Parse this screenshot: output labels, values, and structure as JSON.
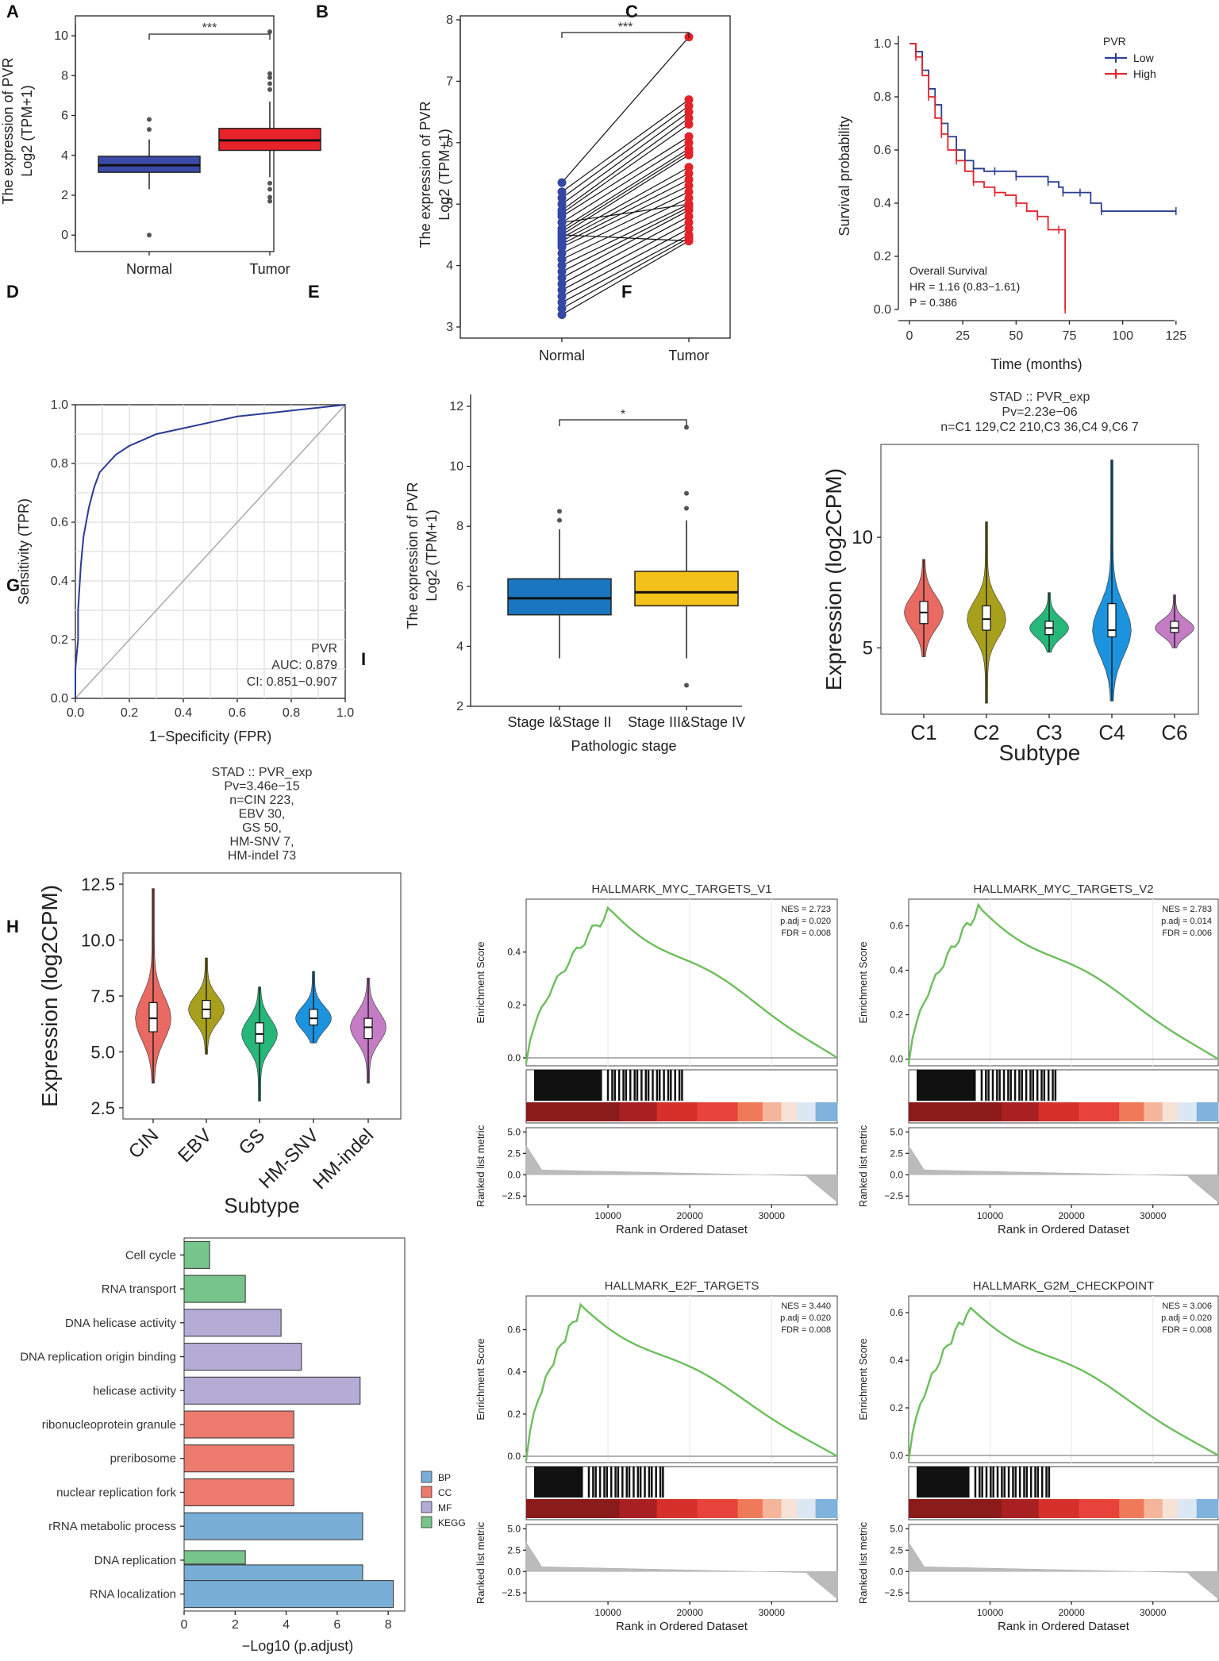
{
  "panels": {
    "a": "A",
    "b": "B",
    "c": "C",
    "d": "D",
    "e": "E",
    "f": "F",
    "g": "G",
    "h": "H",
    "i": "I"
  },
  "chart_data": [
    {
      "id": "A",
      "type": "box",
      "ylabel": "The expression of PVR",
      "ylabel2": "Log2 (TPM+1)",
      "ylim": [
        0,
        10.5
      ],
      "yticks": [
        0,
        2,
        4,
        6,
        8,
        10
      ],
      "categories": [
        "Normal",
        "Tumor"
      ],
      "boxes": [
        {
          "q1": 3.15,
          "median": 3.5,
          "q3": 3.95,
          "lo": 2.3,
          "hi": 4.8,
          "out": [
            5.3,
            5.8,
            0.0
          ],
          "color": "#3a4aa6"
        },
        {
          "q1": 4.25,
          "median": 4.75,
          "q3": 5.35,
          "lo": 2.9,
          "hi": 6.7,
          "out": [
            7.3,
            7.6,
            7.9,
            8.1,
            10.2,
            2.6,
            2.3,
            1.9,
            1.7
          ],
          "color": "#e8222b"
        }
      ],
      "significance": "***"
    },
    {
      "id": "B",
      "type": "paired",
      "ylabel": "The expression of PVR",
      "ylabel2": "Log2 (TPM+1)",
      "ylim": [
        3,
        8
      ],
      "yticks": [
        3,
        4,
        5,
        6,
        7,
        8
      ],
      "categories": [
        "Normal",
        "Tumor"
      ],
      "pairs": [
        [
          5.35,
          7.72
        ],
        [
          5.2,
          6.7
        ],
        [
          5.1,
          6.6
        ],
        [
          5.0,
          6.5
        ],
        [
          4.9,
          6.4
        ],
        [
          4.85,
          6.3
        ],
        [
          4.8,
          6.1
        ],
        [
          4.7,
          6.0
        ],
        [
          4.6,
          5.9
        ],
        [
          4.55,
          5.85
        ],
        [
          4.5,
          5.8
        ],
        [
          4.45,
          5.6
        ],
        [
          4.4,
          5.5
        ],
        [
          4.35,
          5.4
        ],
        [
          4.3,
          5.3
        ],
        [
          4.2,
          5.2
        ],
        [
          4.1,
          5.1
        ],
        [
          4.0,
          5.0
        ],
        [
          3.9,
          4.95
        ],
        [
          3.8,
          4.9
        ],
        [
          3.7,
          4.8
        ],
        [
          3.6,
          4.7
        ],
        [
          3.5,
          4.6
        ],
        [
          3.4,
          4.5
        ],
        [
          3.3,
          4.45
        ],
        [
          3.2,
          4.4
        ],
        [
          4.7,
          5.0
        ],
        [
          4.5,
          4.4
        ]
      ],
      "significance": "***"
    },
    {
      "id": "C",
      "type": "line",
      "xlabel": "Time (months)",
      "ylabel": "Survival probability",
      "xlim": [
        0,
        125
      ],
      "ylim": [
        0,
        1
      ],
      "xticks": [
        0,
        25,
        50,
        75,
        100,
        125
      ],
      "yticks": [
        "0.0",
        "0.2",
        "0.4",
        "0.6",
        "0.8",
        "1.0"
      ],
      "legend_title": "PVR",
      "legend": [
        "Low",
        "High"
      ],
      "series": [
        {
          "name": "Low",
          "color": "#2b3d8f",
          "x": [
            0,
            3,
            6,
            9,
            12,
            15,
            18,
            22,
            26,
            30,
            35,
            40,
            45,
            50,
            60,
            65,
            70,
            72,
            75,
            80,
            85,
            90,
            100,
            125
          ],
          "y": [
            1.0,
            0.97,
            0.9,
            0.83,
            0.77,
            0.7,
            0.65,
            0.6,
            0.56,
            0.53,
            0.52,
            0.52,
            0.52,
            0.5,
            0.5,
            0.48,
            0.46,
            0.44,
            0.44,
            0.44,
            0.4,
            0.37,
            0.37,
            0.37
          ]
        },
        {
          "name": "High",
          "color": "#e3222b",
          "x": [
            0,
            3,
            6,
            9,
            12,
            15,
            18,
            22,
            26,
            30,
            35,
            40,
            45,
            50,
            55,
            60,
            65,
            70,
            73,
            73
          ],
          "y": [
            1.0,
            0.95,
            0.88,
            0.8,
            0.72,
            0.66,
            0.6,
            0.56,
            0.52,
            0.48,
            0.46,
            0.44,
            0.43,
            0.4,
            0.37,
            0.35,
            0.3,
            0.3,
            0.28,
            0.0
          ]
        }
      ],
      "annotation": [
        "Overall Survival",
        "HR = 1.16 (0.83−1.61)",
        "P = 0.386"
      ]
    },
    {
      "id": "D",
      "type": "roc",
      "xlabel": "1−Specificity (FPR)",
      "ylabel": "Sensitivity (TPR)",
      "xticks": [
        "0.0",
        "0.2",
        "0.4",
        "0.6",
        "0.8",
        "1.0"
      ],
      "yticks": [
        "0.0",
        "0.2",
        "0.4",
        "0.6",
        "0.8",
        "1.0"
      ],
      "fpr": [
        0,
        0.0,
        0.01,
        0.01,
        0.02,
        0.03,
        0.05,
        0.07,
        0.09,
        0.12,
        0.15,
        0.2,
        0.25,
        0.3,
        0.4,
        0.5,
        0.6,
        0.7,
        0.8,
        0.9,
        1.0
      ],
      "tpr": [
        0,
        0.1,
        0.2,
        0.3,
        0.45,
        0.55,
        0.65,
        0.72,
        0.77,
        0.8,
        0.83,
        0.86,
        0.88,
        0.9,
        0.92,
        0.94,
        0.96,
        0.97,
        0.98,
        0.99,
        1.0
      ],
      "annotation": [
        "PVR",
        "AUC: 0.879",
        "CI: 0.851−0.907"
      ]
    },
    {
      "id": "E",
      "type": "box",
      "xlabel": "Pathologic stage",
      "ylabel": "The expression of PVR",
      "ylabel2": "Log2 (TPM+1)",
      "ylim": [
        2,
        12
      ],
      "yticks": [
        2,
        4,
        6,
        8,
        10,
        12
      ],
      "categories": [
        "Stage I&Stage II",
        "Stage III&Stage IV"
      ],
      "boxes": [
        {
          "q1": 5.05,
          "median": 5.6,
          "q3": 6.25,
          "lo": 3.6,
          "hi": 7.9,
          "out": [
            8.2,
            8.5
          ],
          "color": "#1b76c2"
        },
        {
          "q1": 5.35,
          "median": 5.8,
          "q3": 6.5,
          "lo": 3.6,
          "hi": 8.2,
          "out": [
            8.6,
            9.1,
            11.3,
            2.7
          ],
          "color": "#f2c11a"
        }
      ],
      "significance": "*"
    },
    {
      "id": "F",
      "type": "violin",
      "title": "STAD :: PVR_exp",
      "title2": "Pv=2.23e−06",
      "title3": "n=C1 129,C2 210,C3 36,C4 9,C6 7",
      "xlabel": "Subtype",
      "ylabel": "Expression (log2CPM)",
      "ylim": [
        2,
        14
      ],
      "yticks": [
        5,
        10
      ],
      "categories": [
        "C1",
        "C2",
        "C3",
        "C4",
        "C6"
      ],
      "groups": [
        {
          "median": 6.6,
          "q1": 6.1,
          "q3": 7.1,
          "lo": 4.6,
          "hi": 9.0,
          "color": "#e86a63"
        },
        {
          "median": 6.3,
          "q1": 5.8,
          "q3": 6.9,
          "lo": 2.5,
          "hi": 10.7,
          "color": "#a8a01c"
        },
        {
          "median": 5.9,
          "q1": 5.6,
          "q3": 6.2,
          "lo": 4.8,
          "hi": 7.5,
          "color": "#25b87a"
        },
        {
          "median": 5.8,
          "q1": 5.5,
          "q3": 7.0,
          "lo": 2.6,
          "hi": 13.5,
          "color": "#1c93df"
        },
        {
          "median": 5.9,
          "q1": 5.7,
          "q3": 6.2,
          "lo": 5.0,
          "hi": 7.4,
          "color": "#c47cc4"
        }
      ]
    },
    {
      "id": "G",
      "type": "violin",
      "title": "STAD :: PVR_exp",
      "title2": "Pv=3.46e−15",
      "title3": "n=CIN 223,",
      "title4": "EBV 30,",
      "title5": "GS 50,",
      "title6": "HM-SNV 7,",
      "title7": "HM-indel 73",
      "xlabel": "Subtype",
      "ylabel": "Expression (log2CPM)",
      "ylim": [
        2,
        13
      ],
      "yticks": [
        "2.5",
        "5.0",
        "7.5",
        "10.0",
        "12.5"
      ],
      "categories": [
        "CIN",
        "EBV",
        "GS",
        "HM-SNV",
        "HM-indel"
      ],
      "groups": [
        {
          "median": 6.5,
          "q1": 5.9,
          "q3": 7.2,
          "lo": 3.6,
          "hi": 12.3,
          "color": "#e86a63"
        },
        {
          "median": 6.9,
          "q1": 6.5,
          "q3": 7.3,
          "lo": 4.9,
          "hi": 9.2,
          "color": "#a8a01c"
        },
        {
          "median": 5.8,
          "q1": 5.4,
          "q3": 6.3,
          "lo": 2.8,
          "hi": 7.9,
          "color": "#25b87a"
        },
        {
          "median": 6.5,
          "q1": 6.2,
          "q3": 6.9,
          "lo": 5.4,
          "hi": 8.6,
          "color": "#1c93df"
        },
        {
          "median": 6.1,
          "q1": 5.6,
          "q3": 6.5,
          "lo": 3.6,
          "hi": 8.3,
          "color": "#c47cc4"
        }
      ]
    },
    {
      "id": "H",
      "type": "bar",
      "xlabel": "−Log10 (p.adjust)",
      "xlim": [
        0,
        8.4
      ],
      "xticks": [
        0,
        2,
        4,
        6,
        8
      ],
      "categories": [
        "Cell cycle",
        "RNA transport",
        "DNA helicase activity",
        "DNA replication origin binding",
        "helicase activity",
        "ribonucleoprotein granule",
        "preribosome",
        "nuclear replication fork",
        "rRNA metabolic process",
        "DNA replication",
        "RNA localization"
      ],
      "bars": [
        {
          "v": 1.0,
          "g": "KEGG"
        },
        {
          "v": 2.4,
          "g": "KEGG"
        },
        {
          "v": 3.8,
          "g": "MF"
        },
        {
          "v": 4.6,
          "g": "MF"
        },
        {
          "v": 6.9,
          "g": "MF"
        },
        {
          "v": 4.3,
          "g": "CC"
        },
        {
          "v": 4.3,
          "g": "CC"
        },
        {
          "v": 4.3,
          "g": "CC"
        },
        {
          "v": 7.0,
          "g": "BP"
        },
        {
          "v": 7.0,
          "g": "BP",
          "v2": 2.4,
          "g2": "KEGG"
        },
        {
          "v": 8.2,
          "g": "BP"
        }
      ],
      "legend": [
        "BP",
        "CC",
        "MF",
        "KEGG"
      ],
      "colors": {
        "BP": "#79aed6",
        "CC": "#ec7a6d",
        "MF": "#b5acd6",
        "KEGG": "#77c48c"
      }
    },
    {
      "id": "I",
      "type": "gsea",
      "xlabel": "Rank in Ordered Dataset",
      "ylabel": "Enrichment Score",
      "ylabel2": "Ranked list metric",
      "xticks": [
        "10000",
        "20000",
        "30000"
      ],
      "metric_ticks": [
        "5.0",
        "2.5",
        "0.0",
        "−2.5"
      ],
      "plots": [
        {
          "title": "HALLMARK_MYC_TARGETS_V1",
          "nes": "NES = 2.723",
          "padj": "p.adj = 0.020",
          "fdr": "FDR = 0.008",
          "yticks": [
            "0.0",
            "0.2",
            "0.4"
          ],
          "ymax": 0.6,
          "peak": 0.56,
          "peakx": 0.27
        },
        {
          "title": "HALLMARK_MYC_TARGETS_V2",
          "nes": "NES = 2.783",
          "padj": "p.adj = 0.014",
          "fdr": "FDR = 0.006",
          "yticks": [
            "0.0",
            "0.2",
            "0.4",
            "0.6"
          ],
          "ymax": 0.72,
          "peak": 0.68,
          "peakx": 0.23
        },
        {
          "title": "HALLMARK_E2F_TARGETS",
          "nes": "NES = 3.440",
          "padj": "p.adj = 0.020",
          "fdr": "FDR = 0.008",
          "yticks": [
            "0.0",
            "0.2",
            "0.4",
            "0.6"
          ],
          "ymax": 0.76,
          "peak": 0.71,
          "peakx": 0.18
        },
        {
          "title": "HALLMARK_G2M_CHECKPOINT",
          "nes": "NES = 3.006",
          "padj": "p.adj = 0.020",
          "fdr": "FDR = 0.008",
          "yticks": [
            "0.0",
            "0.2",
            "0.4",
            "0.6"
          ],
          "ymax": 0.67,
          "peak": 0.62,
          "peakx": 0.2
        }
      ]
    }
  ]
}
